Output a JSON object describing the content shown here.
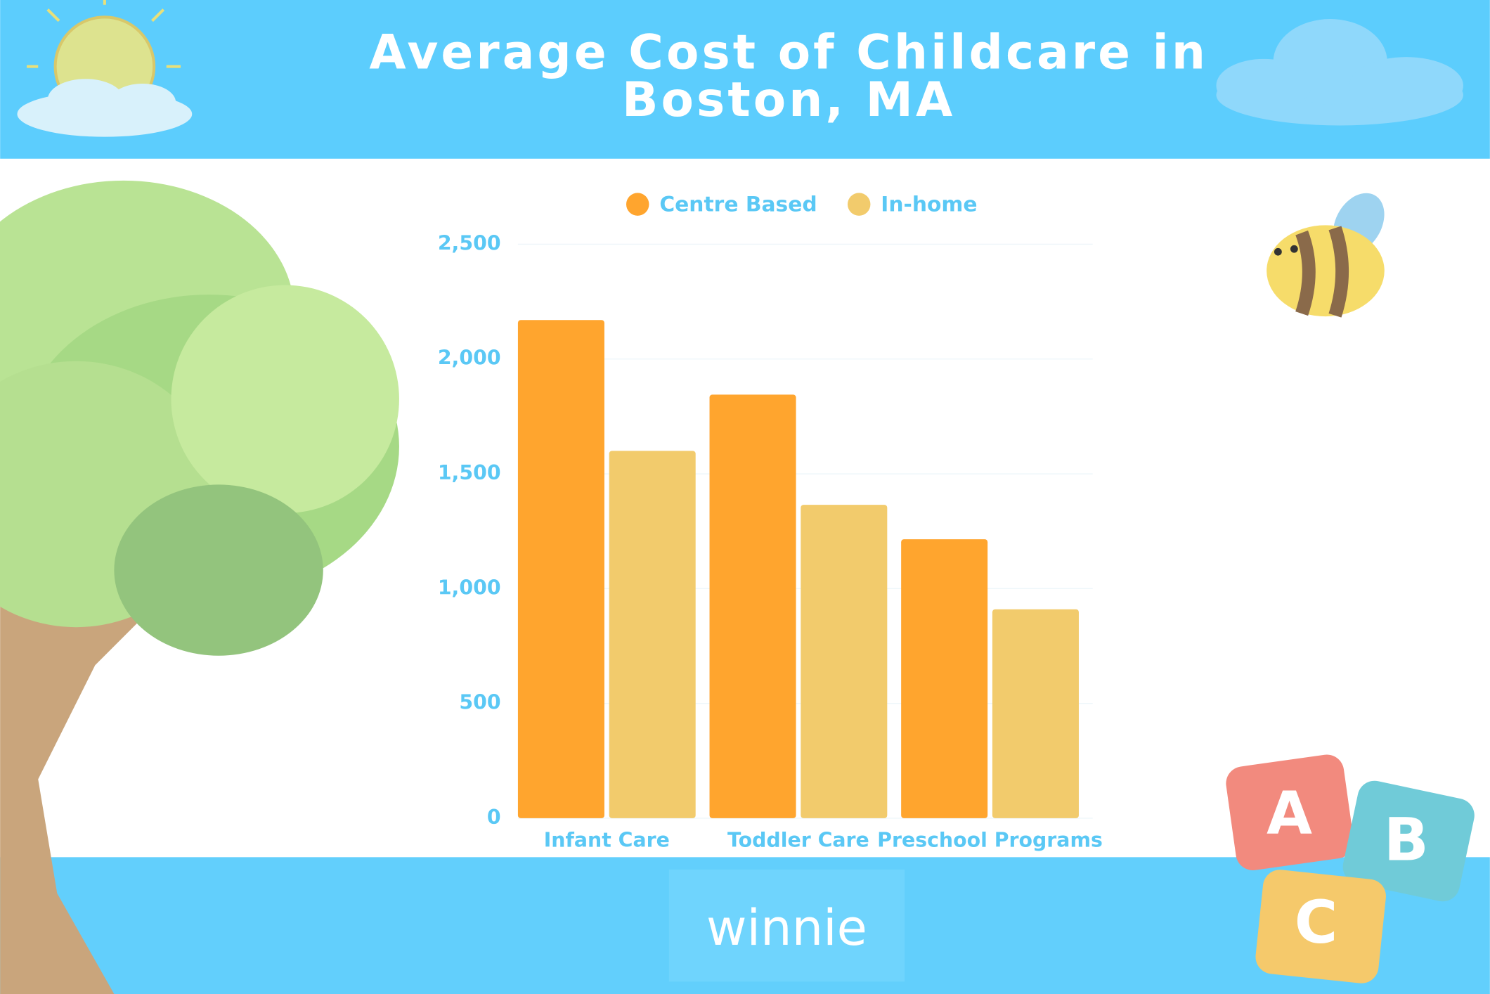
{
  "chart_data": {
    "type": "bar",
    "title": "Average Cost of Childcare in Boston, MA",
    "categories": [
      "Infant Care",
      "Toddler Care",
      "Preschool Programs"
    ],
    "series": [
      {
        "name": "Centre Based",
        "color": "#ffa52e",
        "values": [
          2170,
          1845,
          1215
        ]
      },
      {
        "name": "In-home",
        "color": "#f2cb6c",
        "values": [
          1600,
          1365,
          910
        ]
      }
    ],
    "ylim": [
      0,
      2500
    ],
    "yticks": [
      0,
      500,
      {
        "value": 1000,
        "label": "1,000"
      },
      {
        "value": 1500,
        "label": "1,500"
      },
      {
        "value": 2000,
        "label": "2,000"
      },
      {
        "value": 2500,
        "label": "2,500"
      }
    ],
    "grid": true,
    "legend": "top"
  },
  "brand": "winnie",
  "blocks": [
    "A",
    "B",
    "C"
  ]
}
